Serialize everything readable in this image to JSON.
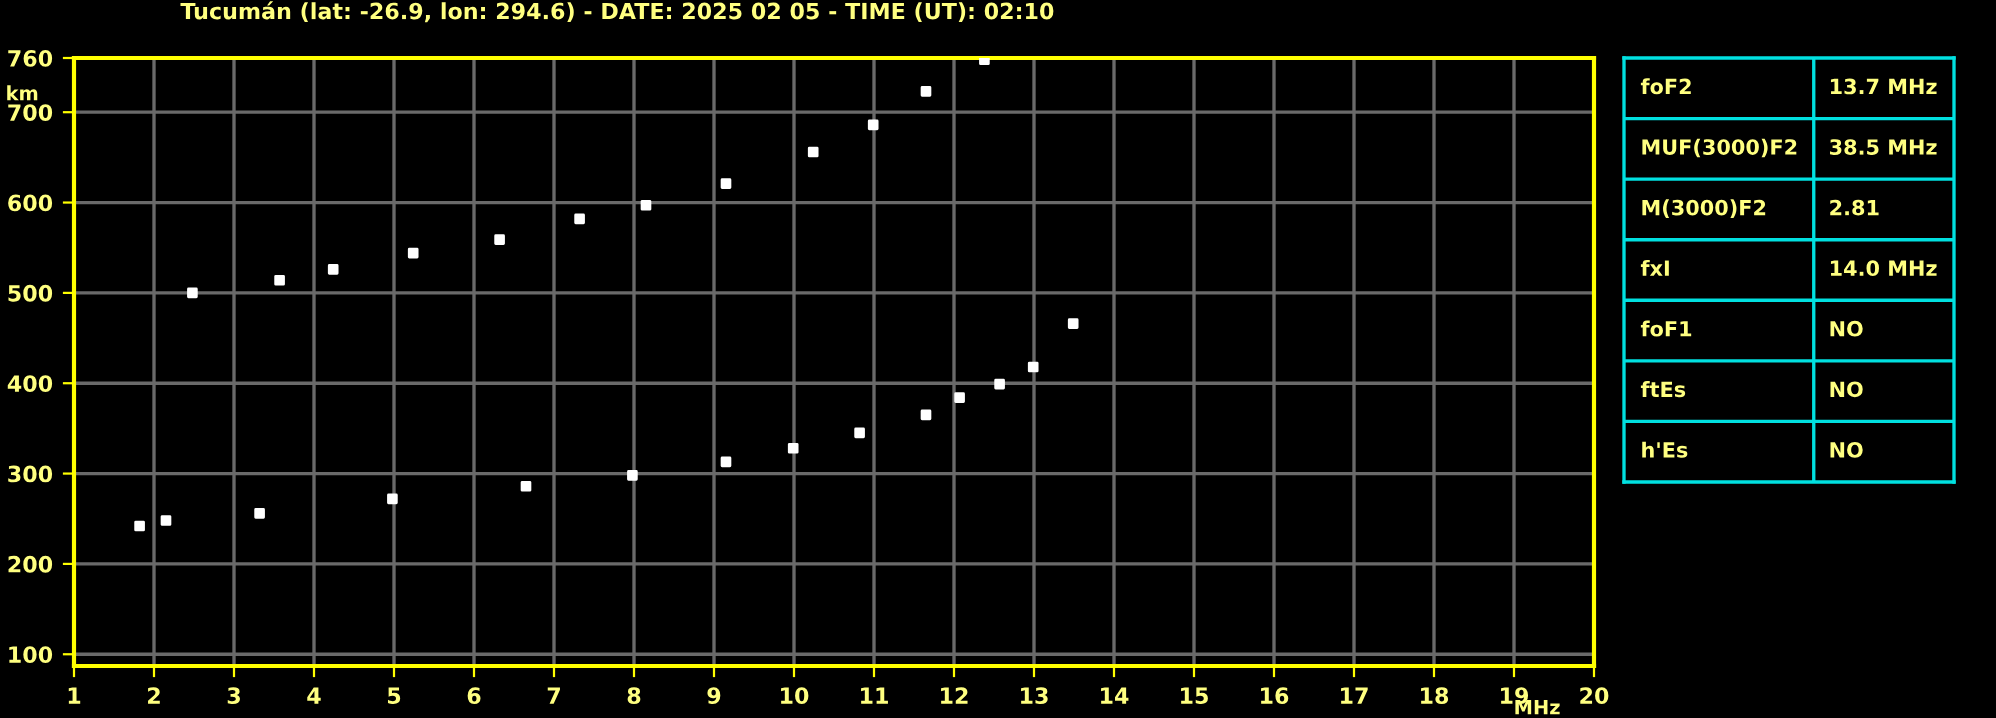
{
  "chart_data": [
    {
      "type": "scatter",
      "title": "Tucumán (lat: -26.9, lon: 294.6) - DATE: 2025 02 05 - TIME (UT): 02:10",
      "xlabel": "MHz",
      "ylabel": "km",
      "xlim": [
        1,
        20
      ],
      "ylim": [
        87,
        760
      ],
      "xticks": [
        1,
        2,
        3,
        4,
        5,
        6,
        7,
        8,
        9,
        10,
        11,
        12,
        13,
        14,
        15,
        16,
        17,
        18,
        19,
        20
      ],
      "yticks": [
        100,
        200,
        300,
        400,
        500,
        600,
        700,
        760
      ],
      "grid": true,
      "marker": "square",
      "series": [
        {
          "color": "#ffffff",
          "x": [
            1.82,
            2.15,
            3.32,
            4.98,
            6.65,
            7.98,
            9.15,
            9.99,
            10.82,
            11.65,
            12.07,
            12.57,
            12.99,
            13.49
          ],
          "values": [
            242,
            248,
            256,
            272,
            286,
            298,
            313,
            328,
            345,
            365,
            384,
            399,
            418,
            466
          ]
        },
        {
          "color": "#ffffff",
          "x": [
            2.48,
            3.57,
            4.24,
            5.24,
            6.32,
            7.32,
            8.15,
            9.15,
            10.24,
            10.99,
            11.65,
            12.38
          ],
          "values": [
            500,
            514,
            526,
            544,
            559,
            582,
            597,
            621,
            656,
            686,
            723,
            758
          ]
        }
      ]
    },
    {
      "type": "other",
      "annotations": [
        "foF2",
        "13.7 MHz",
        "MUF(3000)F2",
        "38.5 MHz",
        "M(3000)F2",
        "2.81",
        "fxI",
        "14.0 MHz",
        "foF1",
        "NO",
        "ftEs",
        "NO",
        "h'Es",
        "NO"
      ]
    }
  ]
}
